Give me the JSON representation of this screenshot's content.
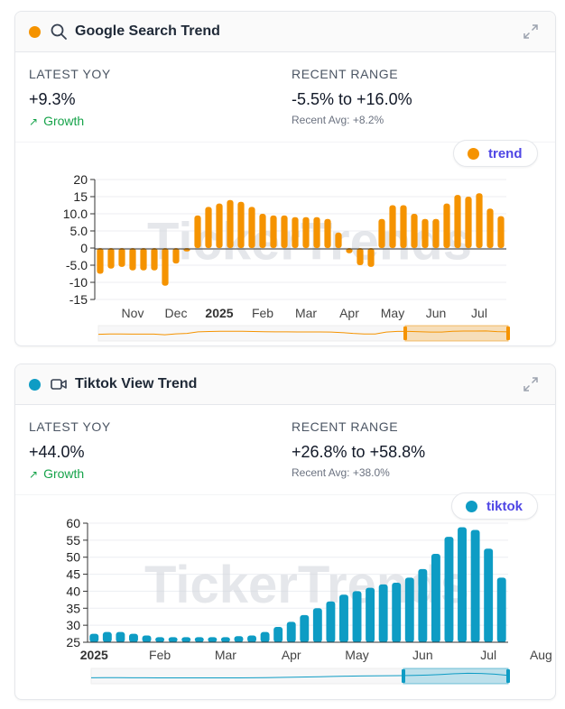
{
  "cards": [
    {
      "title": "Google Search Trend",
      "accent": "#f59300",
      "icon": "search-icon",
      "latest_label": "LATEST YOY",
      "latest_value": "+9.3%",
      "growth_label": "Growth",
      "range_label": "RECENT RANGE",
      "range_value": "-5.5% to +16.0%",
      "avg_text": "Recent Avg: +8.2%",
      "legend": "trend",
      "watermark": "TickerTrends"
    },
    {
      "title": "Tiktok View Trend",
      "accent": "#0e9cc4",
      "icon": "video-camera-icon",
      "latest_label": "LATEST YOY",
      "latest_value": "+44.0%",
      "growth_label": "Growth",
      "range_label": "RECENT RANGE",
      "range_value": "+26.8% to +58.8%",
      "avg_text": "Recent Avg: +38.0%",
      "legend": "tiktok",
      "watermark": "TickerTrends"
    }
  ],
  "chart_data": [
    {
      "type": "bar",
      "series": [
        {
          "name": "trend",
          "color": "#f59300",
          "values": [
            -7.5,
            -6,
            -5.5,
            -6.5,
            -6.5,
            -6.5,
            -11,
            -4.5,
            -1,
            9.5,
            12,
            13,
            14,
            13.5,
            12,
            10,
            9.5,
            9.5,
            9,
            9,
            9,
            8.5,
            4.5,
            -1.5,
            -5,
            -5.5,
            8.5,
            12.5,
            12.5,
            10,
            8.5,
            8.5,
            13,
            15.5,
            15,
            16,
            11.5,
            9.3
          ]
        }
      ],
      "ylim": [
        -15,
        20
      ],
      "yticks": [
        20,
        15,
        10,
        5.0,
        0,
        -5.0,
        -10,
        -15
      ],
      "ytick_labels": [
        "20",
        "15",
        "10.0",
        "5.0",
        "0",
        "-5.0",
        "-10",
        "-15"
      ],
      "xticks": [
        {
          "label": "Nov",
          "index": 3
        },
        {
          "label": "Dec",
          "index": 7
        },
        {
          "label": "2025",
          "index": 11
        },
        {
          "label": "Feb",
          "index": 15
        },
        {
          "label": "Mar",
          "index": 19
        },
        {
          "label": "Apr",
          "index": 23
        },
        {
          "label": "May",
          "index": 27
        },
        {
          "label": "Jun",
          "index": 31
        },
        {
          "label": "Jul",
          "index": 35
        }
      ],
      "grid": true
    },
    {
      "type": "bar",
      "series": [
        {
          "name": "tiktok",
          "color": "#0e9cc4",
          "values": [
            27.5,
            28,
            28,
            27.5,
            27,
            26.5,
            26.5,
            26.5,
            26.5,
            26.5,
            26.5,
            26.8,
            27,
            28,
            29.5,
            31,
            33,
            35,
            37,
            39,
            40,
            41,
            42,
            42.5,
            44,
            46.5,
            51,
            56,
            58.8,
            58,
            52.5,
            44
          ]
        }
      ],
      "ylim": [
        25,
        60
      ],
      "yticks": [
        60,
        55,
        50,
        45,
        40,
        35,
        30,
        25
      ],
      "ytick_labels": [
        "60",
        "55",
        "50",
        "45",
        "40",
        "35",
        "30",
        "25"
      ],
      "xticks": [
        {
          "label": "2025",
          "index": 0
        },
        {
          "label": "Feb",
          "index": 5
        },
        {
          "label": "Mar",
          "index": 10
        },
        {
          "label": "Apr",
          "index": 15
        },
        {
          "label": "May",
          "index": 20
        },
        {
          "label": "Jun",
          "index": 25
        },
        {
          "label": "Jul",
          "index": 30
        },
        {
          "label": "Aug",
          "index": 34
        }
      ],
      "grid": true
    }
  ]
}
